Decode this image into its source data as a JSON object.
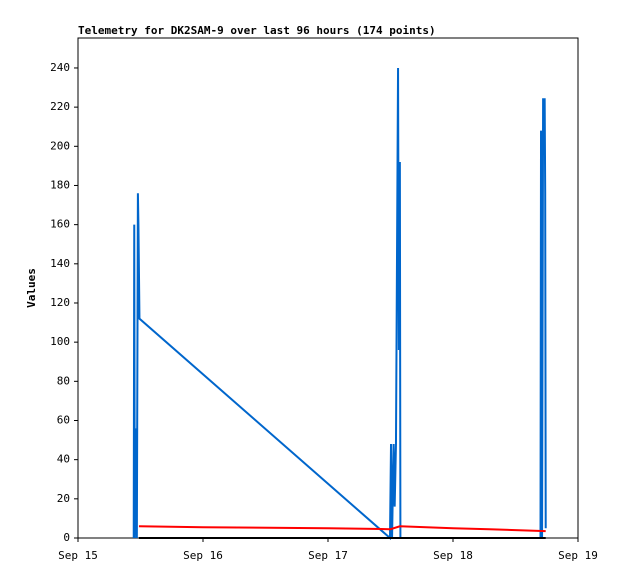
{
  "chart_data": {
    "type": "line",
    "title": "Telemetry for DK2SAM-9 over last 96 hours (174 points)",
    "y_label": "Values",
    "xlim": [
      0,
      96
    ],
    "xticks": [
      {
        "value": 0,
        "label": "Sep 15"
      },
      {
        "value": 24,
        "label": "Sep 16"
      },
      {
        "value": 48,
        "label": "Sep 17"
      },
      {
        "value": 72,
        "label": "Sep 18"
      },
      {
        "value": 96,
        "label": "Sep 19"
      }
    ],
    "ylim": [
      0,
      255.3
    ],
    "yticks": [
      0,
      20,
      40,
      60,
      80,
      100,
      120,
      140,
      160,
      180,
      200,
      220,
      240
    ],
    "series": [
      {
        "color": "#0066cc",
        "x": [
          10.7,
          10.8,
          10.9,
          11.1,
          11.3,
          11.5,
          11.6,
          11.8,
          59.9,
          60.1,
          60.3,
          60.6,
          60.8,
          61.05,
          61.45,
          61.6,
          61.8,
          61.9,
          88.8,
          88.9,
          89.1,
          89.3,
          89.6,
          89.7,
          89.8
        ],
        "values": [
          0,
          160,
          0,
          56,
          0,
          176,
          160,
          112,
          0,
          48,
          0,
          48,
          16,
          48,
          240,
          96,
          192,
          0,
          0,
          208,
          0,
          224,
          224,
          176,
          5
        ]
      },
      {
        "color": "#ff0000",
        "x": [
          11.7,
          24,
          48,
          60,
          61.8,
          72,
          79,
          89.8
        ],
        "values": [
          6,
          5.5,
          5,
          4.5,
          6,
          5,
          4.5,
          3.5
        ]
      },
      {
        "color": "#000000",
        "x": [
          11.7,
          89.8
        ],
        "values": [
          0,
          0
        ]
      }
    ]
  }
}
